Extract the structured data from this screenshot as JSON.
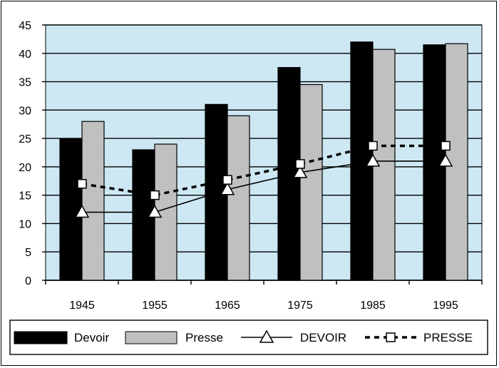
{
  "chart_data": {
    "type": "bar",
    "categories": [
      "1945",
      "1955",
      "1965",
      "1975",
      "1985",
      "1995"
    ],
    "ylim": [
      0,
      45
    ],
    "yticks": [
      0,
      5,
      10,
      15,
      20,
      25,
      30,
      35,
      40,
      45
    ],
    "grid": true,
    "legend_position": "bottom",
    "series": [
      {
        "name": "Devoir",
        "kind": "bar",
        "color": "#000000",
        "values": [
          25,
          23,
          31,
          37.5,
          42,
          41.5
        ]
      },
      {
        "name": "Presse",
        "kind": "bar",
        "color": "#c0c0c0",
        "values": [
          28,
          24,
          29,
          34.5,
          40.7,
          41.7
        ]
      },
      {
        "name": "DEVOIR",
        "kind": "line",
        "marker": "triangle",
        "style": "solid",
        "color": "#000000",
        "values": [
          12,
          12,
          16,
          19,
          21,
          21
        ]
      },
      {
        "name": "PRESSE",
        "kind": "line",
        "marker": "square",
        "style": "dashed",
        "color": "#000000",
        "values": [
          17,
          15,
          17.7,
          20.5,
          23.7,
          23.7
        ]
      }
    ],
    "plot_background": "#cde8f3"
  }
}
